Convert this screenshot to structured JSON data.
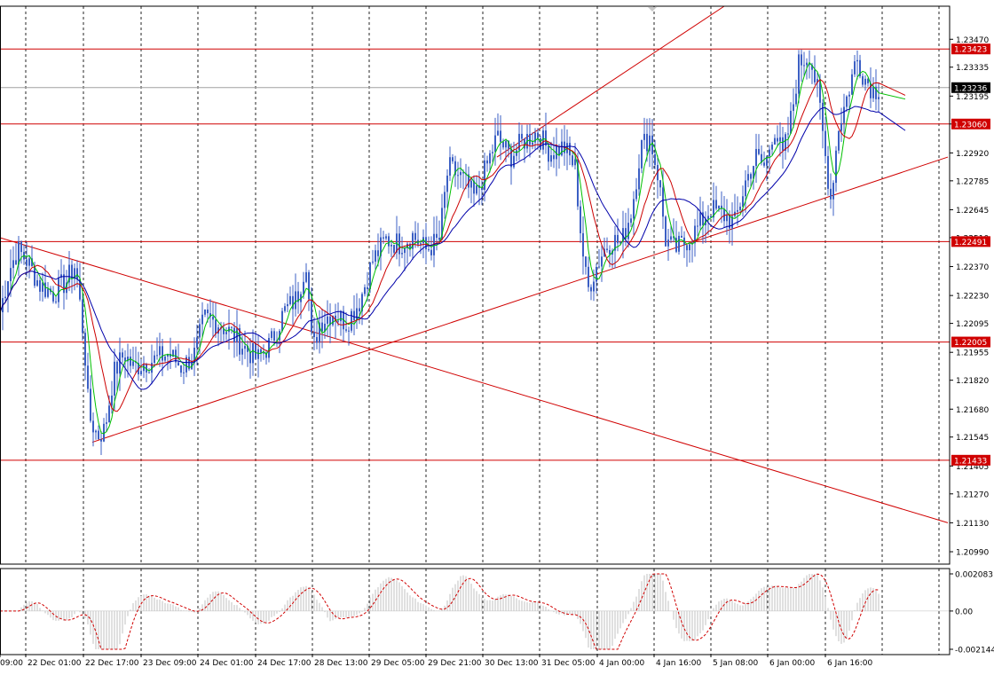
{
  "chart_data": {
    "type": "candlestick",
    "instrument_hint": "",
    "price_axis": {
      "ticks": [
        "1.23470",
        "1.23335",
        "1.23195",
        "1.23060",
        "1.22920",
        "1.22785",
        "1.22645",
        "1.22510",
        "1.22370",
        "1.22230",
        "1.22095",
        "1.21955",
        "1.21820",
        "1.21680",
        "1.21545",
        "1.21405",
        "1.21270",
        "1.21130",
        "1.20990"
      ],
      "range": [
        1.2093,
        1.2363
      ]
    },
    "time_axis": {
      "labels": [
        "09:00",
        "22 Dec 01:00",
        "22 Dec 17:00",
        "23 Dec 09:00",
        "24 Dec 01:00",
        "24 Dec 17:00",
        "28 Dec 13:00",
        "29 Dec 05:00",
        "29 Dec 21:00",
        "30 Dec 13:00",
        "31 Dec 05:00",
        "4 Jan 00:00",
        "4 Jan 16:00",
        "5 Jan 08:00",
        "6 Jan 00:00",
        "6 Jan 16:00"
      ]
    },
    "horizontal_levels": [
      {
        "label": "1.23423",
        "value": 1.23423
      },
      {
        "label": "1.23060",
        "value": 1.2306
      },
      {
        "label": "1.22491",
        "value": 1.22491
      },
      {
        "label": "1.22005",
        "value": 1.22005
      },
      {
        "label": "1.21433",
        "value": 1.21433
      }
    ],
    "current_price": {
      "label": "1.23236",
      "value": 1.23236
    },
    "trendlines": [
      {
        "name": "",
        "from": [
          0,
          1.2251
        ],
        "to": [
          1068,
          1.2113
        ]
      },
      {
        "name": "",
        "from": [
          104,
          1.2152
        ],
        "to": [
          1068,
          1.229
        ]
      },
      {
        "name": "",
        "from": [
          560,
          1.229
        ],
        "to": [
          816,
          1.2363
        ]
      }
    ],
    "moving_averages": [
      {
        "color": "#00c000"
      },
      {
        "color": "#cc0000"
      },
      {
        "color": "#0000aa"
      }
    ],
    "macd": {
      "ticks": [
        "0.002083",
        "0.00",
        "-0.002144"
      ],
      "range": [
        -0.002144,
        0.002083
      ]
    }
  }
}
